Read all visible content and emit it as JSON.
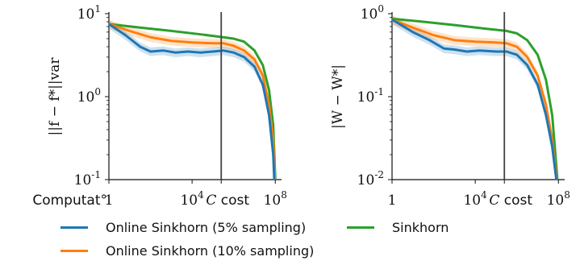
{
  "chart_data": [
    {
      "type": "line",
      "ylabel": "||f − f*||var",
      "yscale": "log",
      "ylim": [
        0.1,
        10
      ],
      "y_ticks": [
        "10^1",
        "10^0",
        "10^-1"
      ],
      "xscale": "log",
      "xlim_log10": [
        0,
        8.3
      ],
      "x_ticks": [
        "Computat°",
        "1",
        "10^4",
        "C cost",
        "10^8"
      ],
      "vline_log10_x": 5.4,
      "series": [
        {
          "name": "Online Sinkhorn (5% sampling)",
          "color": "#1f77b4",
          "band": true,
          "points": [
            [
              0,
              7.5
            ],
            [
              0.8,
              5.5
            ],
            [
              1.5,
              4.0
            ],
            [
              2.0,
              3.5
            ],
            [
              2.6,
              3.6
            ],
            [
              3.2,
              3.4
            ],
            [
              3.8,
              3.5
            ],
            [
              4.4,
              3.4
            ],
            [
              5.0,
              3.5
            ],
            [
              5.5,
              3.6
            ],
            [
              6.0,
              3.4
            ],
            [
              6.5,
              3.0
            ],
            [
              7.0,
              2.3
            ],
            [
              7.4,
              1.4
            ],
            [
              7.7,
              0.6
            ],
            [
              7.9,
              0.2
            ],
            [
              7.95,
              0.1
            ]
          ]
        },
        {
          "name": "Online Sinkhorn (10% sampling)",
          "color": "#ff7f0e",
          "band": true,
          "points": [
            [
              0,
              7.5
            ],
            [
              1.0,
              6.2
            ],
            [
              2.0,
              5.2
            ],
            [
              3.0,
              4.7
            ],
            [
              4.0,
              4.5
            ],
            [
              5.0,
              4.4
            ],
            [
              5.5,
              4.4
            ],
            [
              6.0,
              4.1
            ],
            [
              6.5,
              3.6
            ],
            [
              7.0,
              2.8
            ],
            [
              7.4,
              1.8
            ],
            [
              7.7,
              0.8
            ],
            [
              7.9,
              0.3
            ],
            [
              7.98,
              0.1
            ]
          ]
        },
        {
          "name": "Sinkhorn",
          "color": "#2ca02c",
          "band": false,
          "points": [
            [
              0,
              7.5
            ],
            [
              1.5,
              6.8
            ],
            [
              3.0,
              6.2
            ],
            [
              4.5,
              5.6
            ],
            [
              5.5,
              5.2
            ],
            [
              6.0,
              5.0
            ],
            [
              6.5,
              4.6
            ],
            [
              7.0,
              3.6
            ],
            [
              7.4,
              2.4
            ],
            [
              7.7,
              1.2
            ],
            [
              7.9,
              0.45
            ],
            [
              8.0,
              0.1
            ]
          ]
        }
      ]
    },
    {
      "type": "line",
      "ylabel": "|W − W*|",
      "yscale": "log",
      "ylim": [
        0.01,
        1
      ],
      "y_ticks": [
        "10^0",
        "10^-1",
        "10^-2"
      ],
      "xscale": "log",
      "xlim_log10": [
        0,
        8.3
      ],
      "x_ticks": [
        "1",
        "10^4",
        "C cost",
        "10^8"
      ],
      "vline_log10_x": 5.4,
      "series": [
        {
          "name": "Online Sinkhorn (5% sampling)",
          "color": "#1f77b4",
          "band": true,
          "points": [
            [
              0,
              0.85
            ],
            [
              1.0,
              0.6
            ],
            [
              1.8,
              0.48
            ],
            [
              2.5,
              0.38
            ],
            [
              3.0,
              0.37
            ],
            [
              3.6,
              0.35
            ],
            [
              4.2,
              0.36
            ],
            [
              5.0,
              0.35
            ],
            [
              5.5,
              0.35
            ],
            [
              6.0,
              0.32
            ],
            [
              6.5,
              0.24
            ],
            [
              7.0,
              0.14
            ],
            [
              7.4,
              0.06
            ],
            [
              7.7,
              0.025
            ],
            [
              7.9,
              0.01
            ]
          ]
        },
        {
          "name": "Online Sinkhorn (10% sampling)",
          "color": "#ff7f0e",
          "band": true,
          "points": [
            [
              0,
              0.85
            ],
            [
              1.0,
              0.68
            ],
            [
              2.0,
              0.55
            ],
            [
              3.0,
              0.48
            ],
            [
              4.0,
              0.46
            ],
            [
              5.0,
              0.45
            ],
            [
              5.5,
              0.44
            ],
            [
              6.0,
              0.4
            ],
            [
              6.5,
              0.3
            ],
            [
              7.0,
              0.18
            ],
            [
              7.4,
              0.08
            ],
            [
              7.7,
              0.03
            ],
            [
              7.92,
              0.01
            ]
          ]
        },
        {
          "name": "Sinkhorn",
          "color": "#2ca02c",
          "band": false,
          "points": [
            [
              0,
              0.87
            ],
            [
              1.5,
              0.8
            ],
            [
              3.0,
              0.73
            ],
            [
              4.5,
              0.66
            ],
            [
              5.5,
              0.62
            ],
            [
              6.0,
              0.58
            ],
            [
              6.5,
              0.48
            ],
            [
              7.0,
              0.32
            ],
            [
              7.4,
              0.16
            ],
            [
              7.7,
              0.06
            ],
            [
              7.95,
              0.01
            ]
          ]
        }
      ]
    }
  ],
  "legend": {
    "items": [
      {
        "label": "Online Sinkhorn (5% sampling)",
        "color": "#1f77b4"
      },
      {
        "label": "Sinkhorn",
        "color": "#2ca02c"
      },
      {
        "label": "Online Sinkhorn (10% sampling)",
        "color": "#ff7f0e"
      }
    ]
  }
}
